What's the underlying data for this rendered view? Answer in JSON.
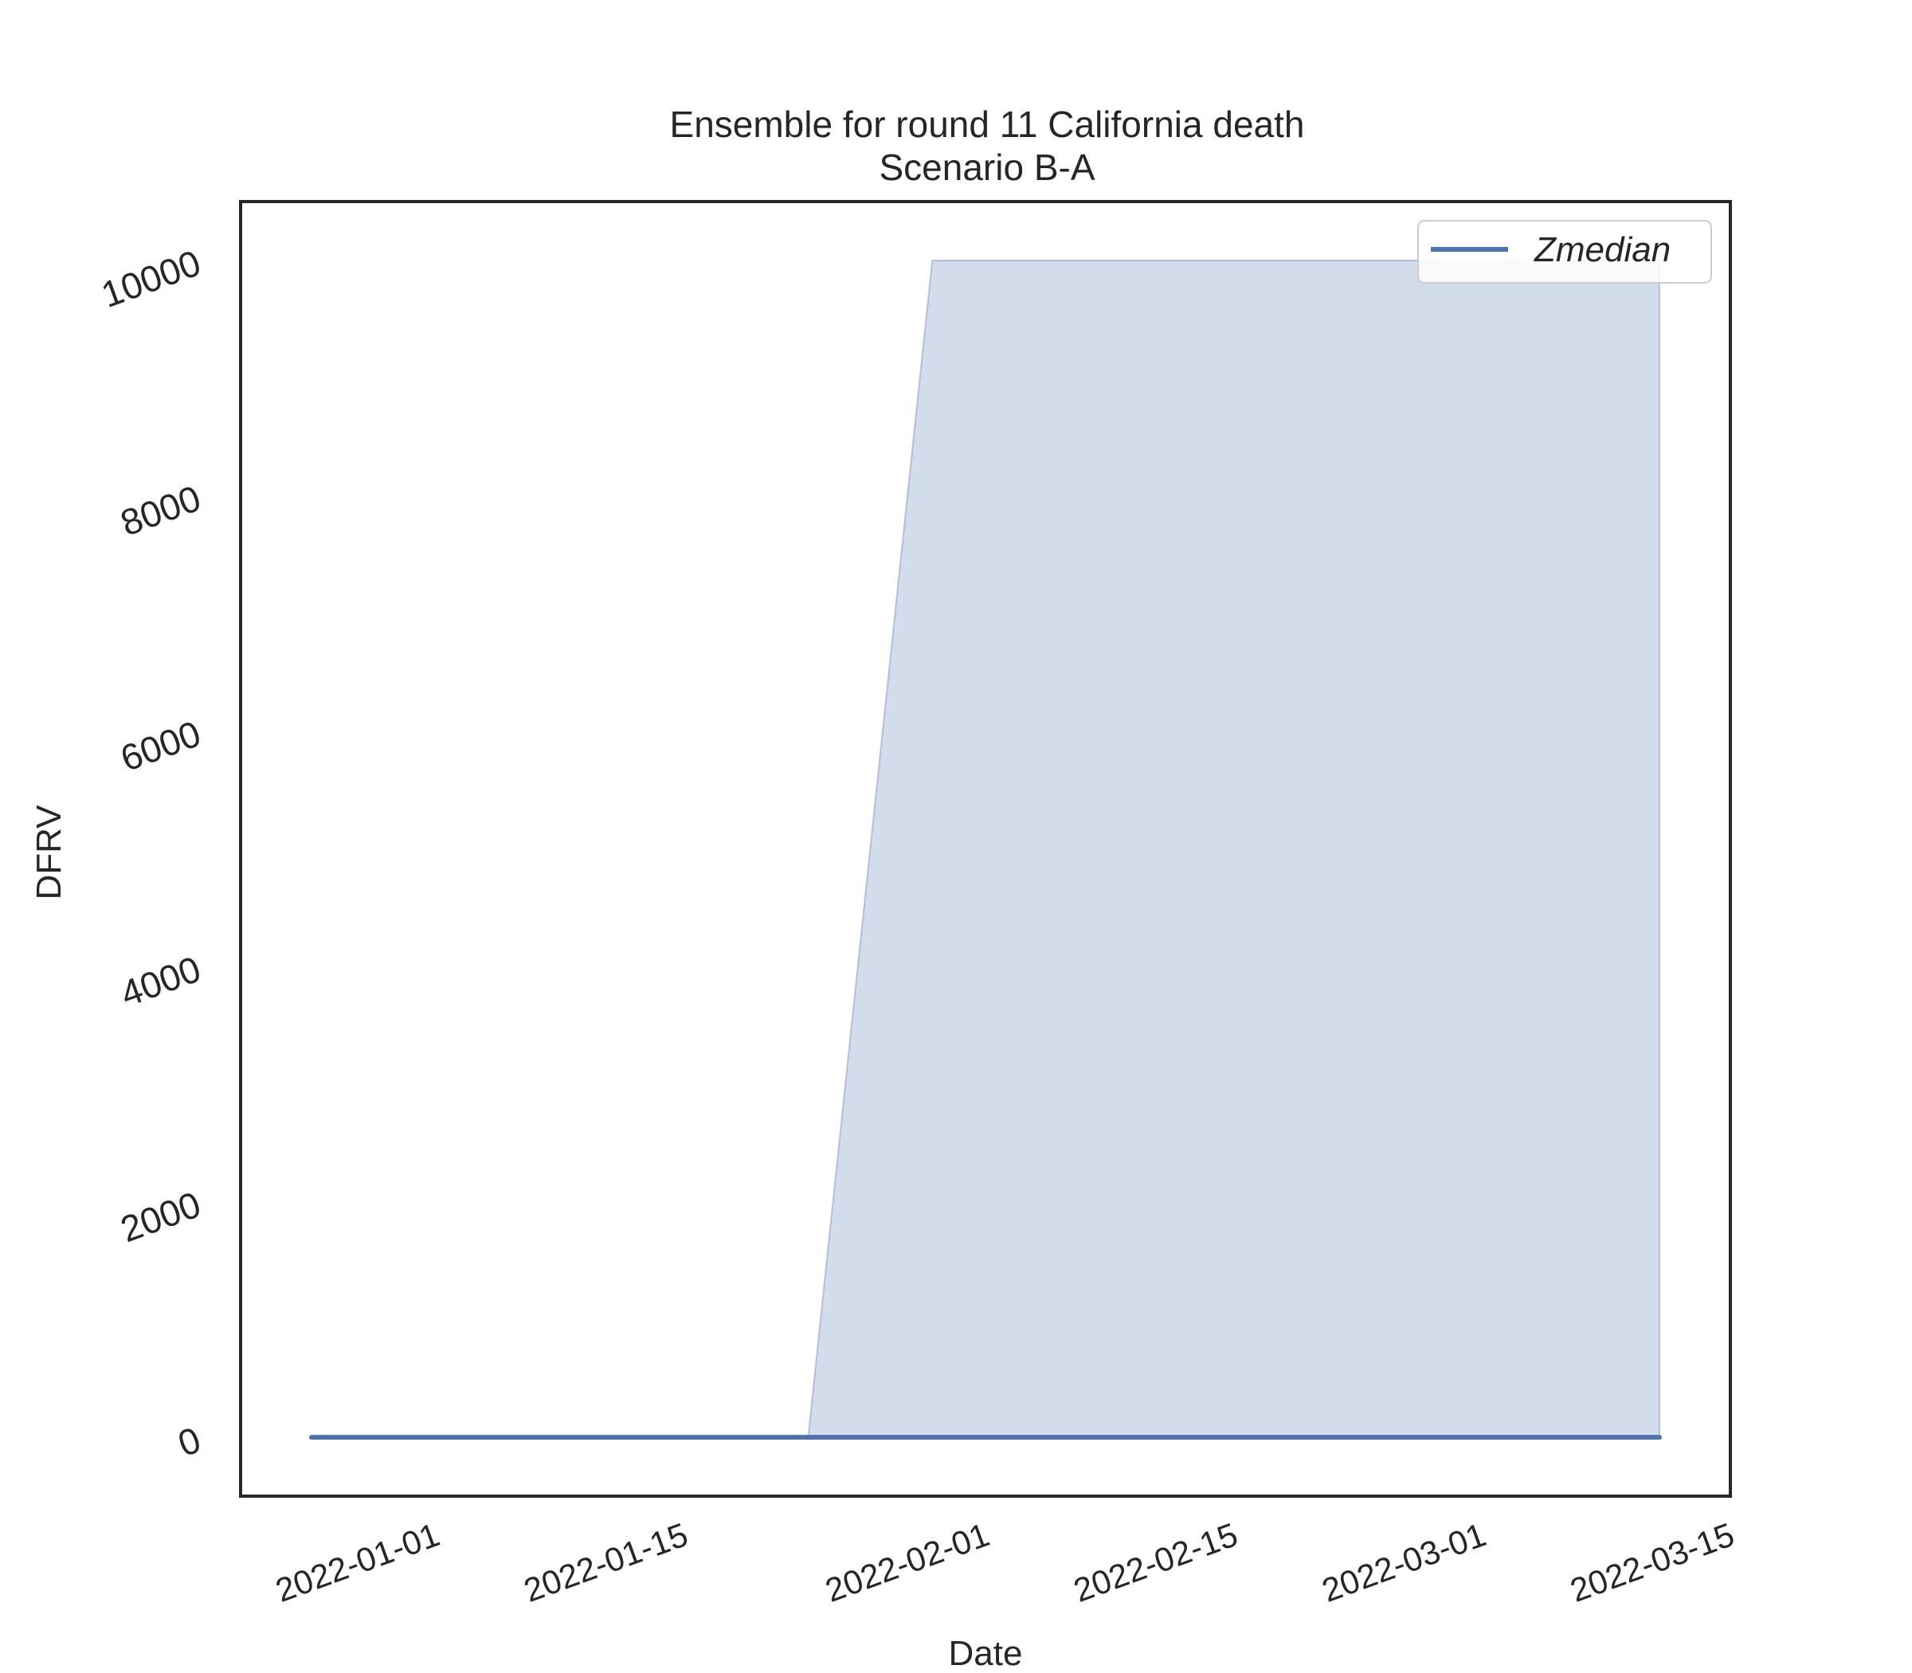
{
  "chart_data": {
    "type": "line",
    "title": "Ensemble for round 11 California death",
    "subtitle": "Scenario B-A",
    "xlabel": "Date",
    "ylabel": "DFRV",
    "x_ticks": [
      "2022-01-01",
      "2022-01-15",
      "2022-02-01",
      "2022-02-15",
      "2022-03-01",
      "2022-03-15"
    ],
    "y_ticks": [
      0,
      2000,
      4000,
      6000,
      8000,
      10000
    ],
    "xlim": [
      "2021-12-22",
      "2022-03-16"
    ],
    "ylim": [
      -500,
      10500
    ],
    "grid": false,
    "legend_position": "top-right",
    "series": [
      {
        "name": "Zmedian",
        "color": "#4c72b0",
        "x": [
          "2021-12-26",
          "2022-03-12"
        ],
        "y": [
          0,
          0
        ]
      }
    ],
    "band": {
      "color": "#4c72b0",
      "x": [
        "2021-12-26",
        "2022-01-23",
        "2022-01-30",
        "2022-03-12"
      ],
      "lower": [
        0,
        0,
        0,
        0
      ],
      "upper": [
        0,
        0,
        10000,
        10000
      ]
    }
  }
}
